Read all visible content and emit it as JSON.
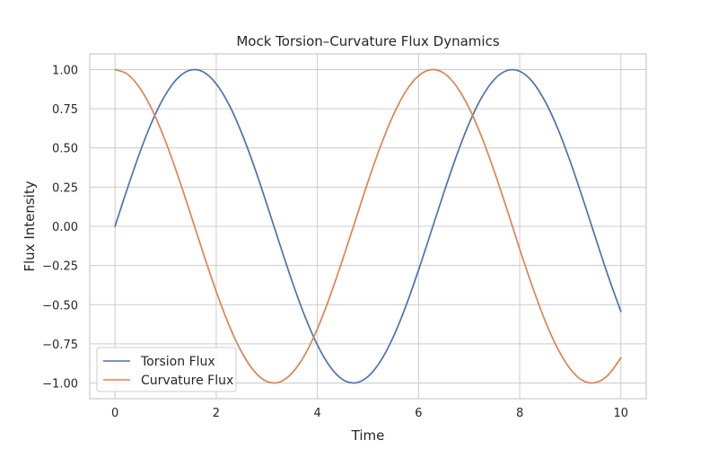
{
  "chart_data": {
    "type": "line",
    "title": "Mock Torsion–Curvature Flux Dynamics",
    "xlabel": "Time",
    "ylabel": "Flux Intensity",
    "xlim": [
      -0.5,
      10.5
    ],
    "ylim": [
      -1.1,
      1.1
    ],
    "xticks": [
      0,
      2,
      4,
      6,
      8,
      10
    ],
    "xtick_labels": [
      "0",
      "2",
      "4",
      "6",
      "8",
      "10"
    ],
    "yticks": [
      1.0,
      0.75,
      0.5,
      0.25,
      0.0,
      -0.25,
      -0.5,
      -0.75,
      -1.0
    ],
    "ytick_labels": [
      "1.00",
      "0.75",
      "0.50",
      "0.25",
      "0.00",
      "−0.25",
      "−0.50",
      "−0.75",
      "−1.00"
    ],
    "grid": true,
    "legend_position": "lower-left",
    "x": [
      0,
      0.25,
      0.5,
      0.75,
      1.0,
      1.25,
      1.5,
      1.75,
      2.0,
      2.25,
      2.5,
      2.75,
      3.0,
      3.25,
      3.5,
      3.75,
      4.0,
      4.25,
      4.5,
      4.75,
      5.0,
      5.25,
      5.5,
      5.75,
      6.0,
      6.25,
      6.5,
      6.75,
      7.0,
      7.25,
      7.5,
      7.75,
      8.0,
      8.25,
      8.5,
      8.75,
      9.0,
      9.25,
      9.5,
      9.75,
      10.0
    ],
    "series": [
      {
        "name": "Torsion Flux",
        "color": "#4c72b0",
        "values": [
          0.0,
          0.247,
          0.479,
          0.682,
          0.841,
          0.949,
          0.997,
          0.984,
          0.909,
          0.778,
          0.598,
          0.382,
          0.141,
          -0.108,
          -0.351,
          -0.572,
          -0.757,
          -0.895,
          -0.978,
          -0.999,
          -0.959,
          -0.859,
          -0.706,
          -0.508,
          -0.279,
          -0.033,
          0.215,
          0.45,
          0.657,
          0.823,
          0.938,
          0.994,
          0.989,
          0.923,
          0.798,
          0.625,
          0.412,
          0.174,
          -0.075,
          -0.319,
          -0.544
        ]
      },
      {
        "name": "Curvature Flux",
        "color": "#dd8452",
        "values": [
          1.0,
          0.969,
          0.878,
          0.732,
          0.54,
          0.315,
          0.071,
          -0.178,
          -0.416,
          -0.628,
          -0.801,
          -0.924,
          -0.99,
          -0.994,
          -0.936,
          -0.821,
          -0.654,
          -0.446,
          -0.211,
          0.036,
          0.284,
          0.512,
          0.709,
          0.862,
          0.96,
          0.999,
          0.977,
          0.893,
          0.754,
          0.568,
          0.347,
          0.106,
          -0.146,
          -0.384,
          -0.602,
          -0.78,
          -0.911,
          -0.985,
          -0.997,
          -0.948,
          -0.839
        ]
      }
    ]
  }
}
